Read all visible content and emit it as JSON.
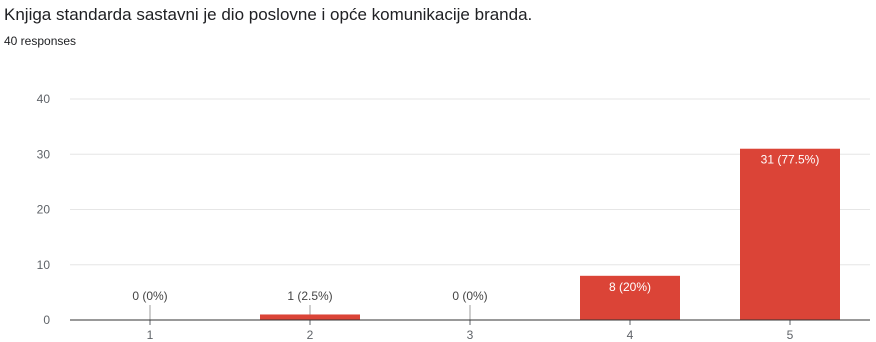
{
  "title": "Knjiga standarda sastavni je dio poslovne i opće komunikacije branda.",
  "subtitle": "40 responses",
  "chart_data": {
    "type": "bar",
    "categories": [
      "1",
      "2",
      "3",
      "4",
      "5"
    ],
    "values": [
      0,
      1,
      0,
      8,
      31
    ],
    "data_labels": [
      "0 (0%)",
      "1 (2.5%)",
      "0 (0%)",
      "8 (20%)",
      "31 (77.5%)"
    ],
    "yticks": [
      "0",
      "10",
      "20",
      "30",
      "40"
    ],
    "ylim": [
      0,
      40
    ],
    "grid": true,
    "bar_color": "#db4437",
    "label_inside_color": "#ffffff",
    "label_outside_color": "#444444"
  }
}
